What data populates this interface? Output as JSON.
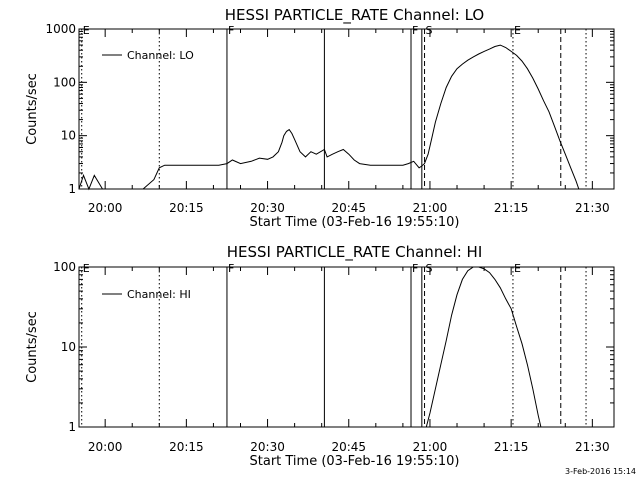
{
  "footer_date": "3-Feb-2016 15:14",
  "chart_data": [
    {
      "type": "line",
      "title": "HESSI PARTICLE_RATE Channel: LO",
      "xlabel": "Start Time (03-Feb-16 19:55:10)",
      "ylabel": "Counts/sec",
      "y_scale": "log",
      "xlim": [
        "19:55:10",
        "21:34:00"
      ],
      "ylim": [
        1,
        1000
      ],
      "x_ticks": [
        "20:00",
        "20:15",
        "20:30",
        "20:45",
        "21:00",
        "21:15",
        "21:30"
      ],
      "y_ticks": [
        "1",
        "10",
        "100",
        "1000"
      ],
      "legend": {
        "placement": "top-left",
        "entries": [
          "Channel: LO"
        ]
      },
      "markers": [
        {
          "time": "19:55:40",
          "label": "E",
          "style": "dotted"
        },
        {
          "time": "20:10:00",
          "label": "",
          "style": "dotted"
        },
        {
          "time": "20:22:30",
          "label": "F",
          "style": "solid"
        },
        {
          "time": "20:40:30",
          "label": "",
          "style": "solid"
        },
        {
          "time": "20:56:30",
          "label": "F",
          "style": "solid"
        },
        {
          "time": "20:58:30",
          "label": "",
          "style": "solid"
        },
        {
          "time": "20:59:00",
          "label": "S",
          "style": "dashed"
        },
        {
          "time": "21:15:20",
          "label": "E",
          "style": "dotted"
        },
        {
          "time": "21:24:10",
          "label": "",
          "style": "dashed"
        },
        {
          "time": "21:28:50",
          "label": "",
          "style": "dotted"
        }
      ],
      "series": [
        {
          "x": [
            "19:55:10",
            "19:56:00",
            "19:57:00",
            "19:58:00",
            "19:59:30",
            "20:01:00",
            "20:03:00",
            "20:05:00",
            "20:07:00",
            "20:09:00",
            "20:10:00",
            "20:11:00",
            "20:13:00",
            "20:15:00",
            "20:17:00",
            "20:19:00",
            "20:21:00",
            "20:22:30",
            "20:23:30",
            "20:25:00",
            "20:27:00",
            "20:28:30",
            "20:30:00",
            "20:31:00",
            "20:32:00",
            "20:32:40",
            "20:33:00",
            "20:33:30",
            "20:34:00",
            "20:34:30",
            "20:35:00",
            "20:35:30",
            "20:36:00",
            "20:37:00",
            "20:38:00",
            "20:39:00",
            "20:40:30",
            "20:41:00",
            "20:42:00",
            "20:43:00",
            "20:44:00",
            "20:45:00",
            "20:46:00",
            "20:47:00",
            "20:49:00",
            "20:51:00",
            "20:53:00",
            "20:55:00",
            "20:56:00",
            "20:57:00",
            "20:58:00",
            "20:58:30",
            "20:59:00",
            "20:59:40",
            "21:00:20",
            "21:01:00",
            "21:02:00",
            "21:03:00",
            "21:04:00",
            "21:05:00",
            "21:06:00",
            "21:07:00",
            "21:08:00",
            "21:09:00",
            "21:10:00",
            "21:11:00",
            "21:12:00",
            "21:13:00",
            "21:14:00",
            "21:15:00",
            "21:16:00",
            "21:17:00",
            "21:18:00",
            "21:19:00",
            "21:20:00",
            "21:21:00",
            "21:22:00",
            "21:23:00",
            "21:24:00",
            "21:25:00",
            "21:26:00",
            "21:27:00",
            "21:27:30",
            "21:28:00"
          ],
          "y": [
            1,
            1.8,
            1,
            1.8,
            1,
            1,
            1,
            1,
            1,
            1.5,
            2.5,
            2.8,
            2.8,
            2.8,
            2.8,
            2.8,
            2.8,
            3,
            3.5,
            3,
            3.3,
            3.8,
            3.6,
            4,
            5,
            7.5,
            10,
            12,
            13,
            11,
            8.5,
            6.5,
            5,
            4,
            5,
            4.5,
            5.5,
            4,
            4.5,
            5,
            5.5,
            4.5,
            3.5,
            3,
            2.8,
            2.8,
            2.8,
            2.8,
            3,
            3.3,
            2.5,
            2.7,
            3,
            4.5,
            9,
            18,
            40,
            80,
            130,
            180,
            220,
            260,
            300,
            340,
            380,
            420,
            470,
            500,
            450,
            380,
            320,
            250,
            180,
            120,
            75,
            45,
            28,
            15,
            8,
            4.5,
            2.5,
            1.4,
            1,
            1
          ]
        }
      ]
    },
    {
      "type": "line",
      "title": "HESSI PARTICLE_RATE Channel: HI",
      "xlabel": "Start Time (03-Feb-16 19:55:10)",
      "ylabel": "Counts/sec",
      "y_scale": "log",
      "xlim": [
        "19:55:10",
        "21:34:00"
      ],
      "ylim": [
        1,
        100
      ],
      "x_ticks": [
        "20:00",
        "20:15",
        "20:30",
        "20:45",
        "21:00",
        "21:15",
        "21:30"
      ],
      "y_ticks": [
        "1",
        "10",
        "100"
      ],
      "legend": {
        "placement": "top-left",
        "entries": [
          "Channel: HI"
        ]
      },
      "markers": [
        {
          "time": "19:55:40",
          "label": "E",
          "style": "dotted"
        },
        {
          "time": "20:10:00",
          "label": "",
          "style": "dotted"
        },
        {
          "time": "20:22:30",
          "label": "F",
          "style": "solid"
        },
        {
          "time": "20:40:30",
          "label": "",
          "style": "solid"
        },
        {
          "time": "20:56:30",
          "label": "F",
          "style": "solid"
        },
        {
          "time": "20:58:30",
          "label": "",
          "style": "solid"
        },
        {
          "time": "20:59:00",
          "label": "S",
          "style": "dashed"
        },
        {
          "time": "21:15:20",
          "label": "E",
          "style": "dotted"
        },
        {
          "time": "21:24:10",
          "label": "",
          "style": "dashed"
        },
        {
          "time": "21:28:50",
          "label": "",
          "style": "dotted"
        }
      ],
      "series": [
        {
          "x": [
            "20:59:20",
            "21:00:00",
            "21:01:00",
            "21:02:00",
            "21:03:00",
            "21:04:00",
            "21:05:00",
            "21:06:00",
            "21:07:00",
            "21:08:00",
            "21:09:00",
            "21:10:00",
            "21:11:00",
            "21:12:00",
            "21:13:00",
            "21:14:00",
            "21:15:00",
            "21:16:00",
            "21:17:00",
            "21:18:00",
            "21:19:00",
            "21:20:00",
            "21:20:30"
          ],
          "y": [
            1,
            1.5,
            3,
            6,
            12,
            25,
            45,
            70,
            90,
            100,
            100,
            95,
            85,
            70,
            55,
            40,
            30,
            18,
            11,
            6,
            3,
            1.4,
            1
          ]
        }
      ]
    }
  ]
}
